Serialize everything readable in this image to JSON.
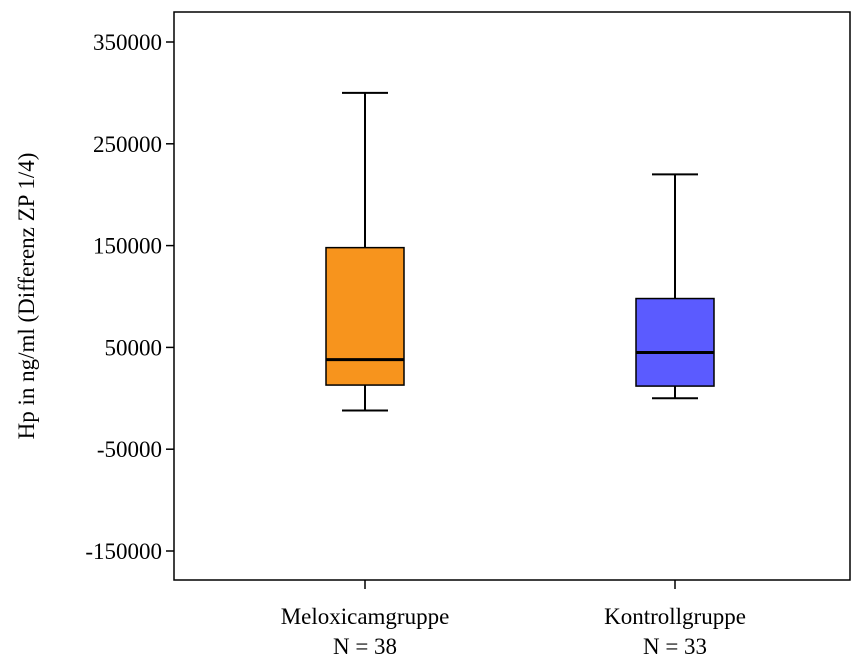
{
  "chart_data": {
    "type": "box",
    "ylabel": "Hp in ng/ml (Differenz ZP 1/4)",
    "ylim": [
      -180000,
      380000
    ],
    "yticks": [
      350000,
      250000,
      150000,
      50000,
      -50000,
      -150000
    ],
    "ytick_labels": [
      "350000",
      "250000",
      "150000",
      "50000",
      "-50000",
      "-150000"
    ],
    "grid": false,
    "groups": [
      {
        "label": "Meloxicamgruppe",
        "n_label": "N = 38",
        "color": "#F7941D",
        "whisker_low": -12000,
        "q1": 13000,
        "median": 38000,
        "q3": 148000,
        "whisker_high": 300000
      },
      {
        "label": "Kontrollgruppe",
        "n_label": "N = 33",
        "color": "#5B5BFF",
        "whisker_low": 0,
        "q1": 12000,
        "median": 45000,
        "q3": 98000,
        "whisker_high": 220000
      }
    ]
  }
}
